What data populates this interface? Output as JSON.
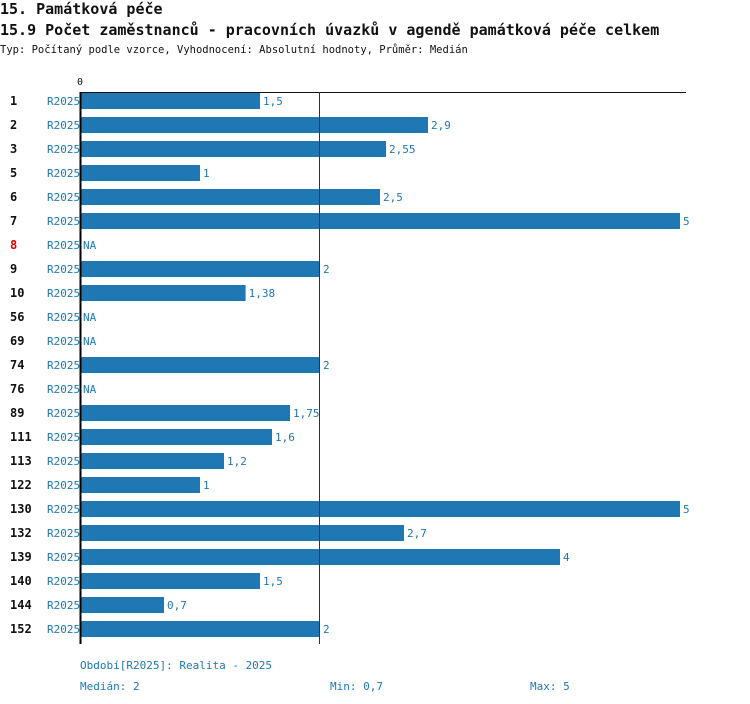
{
  "header": {
    "section": "15. Památková péče",
    "title": "15.9 Počet zaměstnanců - pracovních úvazků v agendě památková péče celkem",
    "subtitle": "Typ: Počítaný podle vzorce, Vyhodnocení: Absolutní hodnoty, Průměr: Medián"
  },
  "colors": {
    "bar": "#1f77b4",
    "highlight": "#e00000"
  },
  "chart_data": {
    "type": "bar",
    "orientation": "horizontal",
    "axis_label_zero": "0",
    "xlim": [
      0,
      5
    ],
    "median": 2,
    "rows": [
      {
        "id": "1",
        "period": "R2025",
        "value": 1.5,
        "label": "1,5"
      },
      {
        "id": "2",
        "period": "R2025",
        "value": 2.9,
        "label": "2,9"
      },
      {
        "id": "3",
        "period": "R2025",
        "value": 2.55,
        "label": "2,55"
      },
      {
        "id": "5",
        "period": "R2025",
        "value": 1,
        "label": "1"
      },
      {
        "id": "6",
        "period": "R2025",
        "value": 2.5,
        "label": "2,5"
      },
      {
        "id": "7",
        "period": "R2025",
        "value": 5,
        "label": "5"
      },
      {
        "id": "8",
        "period": "R2025",
        "value": null,
        "label": "NA",
        "highlight": true
      },
      {
        "id": "9",
        "period": "R2025",
        "value": 2,
        "label": "2"
      },
      {
        "id": "10",
        "period": "R2025",
        "value": 1.38,
        "label": "1,38"
      },
      {
        "id": "56",
        "period": "R2025",
        "value": null,
        "label": "NA"
      },
      {
        "id": "69",
        "period": "R2025",
        "value": null,
        "label": "NA"
      },
      {
        "id": "74",
        "period": "R2025",
        "value": 2,
        "label": "2"
      },
      {
        "id": "76",
        "period": "R2025",
        "value": null,
        "label": "NA"
      },
      {
        "id": "89",
        "period": "R2025",
        "value": 1.75,
        "label": "1,75"
      },
      {
        "id": "111",
        "period": "R2025",
        "value": 1.6,
        "label": "1,6"
      },
      {
        "id": "113",
        "period": "R2025",
        "value": 1.2,
        "label": "1,2"
      },
      {
        "id": "122",
        "period": "R2025",
        "value": 1,
        "label": "1"
      },
      {
        "id": "130",
        "period": "R2025",
        "value": 5,
        "label": "5"
      },
      {
        "id": "132",
        "period": "R2025",
        "value": 2.7,
        "label": "2,7"
      },
      {
        "id": "139",
        "period": "R2025",
        "value": 4,
        "label": "4"
      },
      {
        "id": "140",
        "period": "R2025",
        "value": 1.5,
        "label": "1,5"
      },
      {
        "id": "144",
        "period": "R2025",
        "value": 0.7,
        "label": "0,7"
      },
      {
        "id": "152",
        "period": "R2025",
        "value": 2,
        "label": "2"
      }
    ]
  },
  "footer": {
    "period": "Období[R2025]: Realita - 2025",
    "median": "Medián: 2",
    "min": "Min: 0,7",
    "max": "Max: 5"
  }
}
